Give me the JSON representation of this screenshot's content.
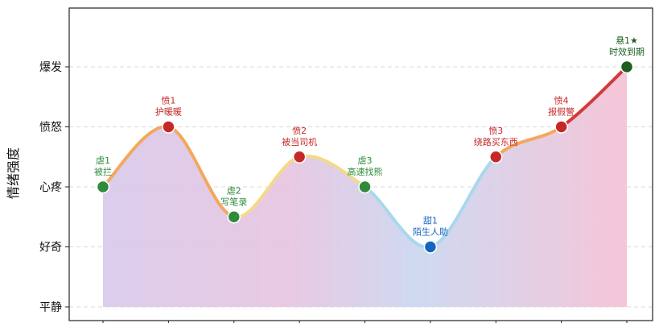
{
  "chart_data": {
    "type": "line",
    "ylabel": "情绪强度",
    "y_categories": [
      "平静",
      "好奇",
      "心疼",
      "愤怒",
      "爆发"
    ],
    "ylim": [
      0,
      5
    ],
    "x": [
      1,
      2,
      3,
      4,
      5,
      6,
      7,
      8,
      9
    ],
    "values": [
      2,
      3,
      1.5,
      2.5,
      2,
      1,
      2.5,
      3,
      4
    ],
    "points": [
      {
        "tag": "虐1",
        "desc": "被拦",
        "kind": "虐"
      },
      {
        "tag": "愤1",
        "desc": "护暖暖",
        "kind": "愤"
      },
      {
        "tag": "虐2",
        "desc": "写笔录",
        "kind": "虐"
      },
      {
        "tag": "愤2",
        "desc": "被当司机",
        "kind": "愤"
      },
      {
        "tag": "虐3",
        "desc": "高速找熊",
        "kind": "虐"
      },
      {
        "tag": "甜1",
        "desc": "陌生人助",
        "kind": "甜"
      },
      {
        "tag": "愤3",
        "desc": "绕路买东西",
        "kind": "愤"
      },
      {
        "tag": "愤4",
        "desc": "报假警",
        "kind": "愤"
      },
      {
        "tag": "悬1★",
        "desc": "时效到期",
        "kind": "悬"
      }
    ],
    "grid": true,
    "colors": {
      "虐": "#2e8b3a",
      "愤": "#c62828",
      "甜": "#1565c0",
      "悬": "#1b5e20"
    }
  }
}
